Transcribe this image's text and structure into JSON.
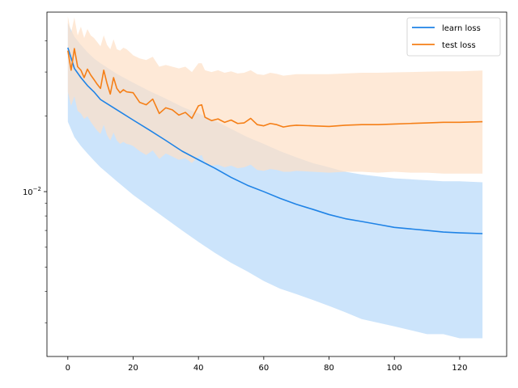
{
  "chart_data": {
    "type": "line",
    "x_scale": "linear",
    "y_scale": "log",
    "xlim": [
      -6.4,
      134.4
    ],
    "ylim": [
      0.0022,
      0.052
    ],
    "x_ticks": [
      0,
      20,
      40,
      60,
      80,
      100,
      120
    ],
    "x_tick_labels": [
      "0",
      "20",
      "40",
      "60",
      "80",
      "100",
      "120"
    ],
    "y_major_ticks": [
      0.01
    ],
    "y_major_tick_labels": [
      "10",
      "−2"
    ],
    "y_minor_ticks": [
      0.003,
      0.004,
      0.005,
      0.006,
      0.007,
      0.008,
      0.009,
      0.02,
      0.03,
      0.04
    ],
    "legend": {
      "placement": "top-right",
      "entries": [
        "learn loss",
        "test loss"
      ]
    },
    "grid": false,
    "series": [
      {
        "name": "learn loss",
        "color": "#1f83e6",
        "band_color": "#cce4fb",
        "x": [
          0,
          2,
          4,
          6,
          8,
          10,
          15,
          20,
          25,
          30,
          35,
          40,
          45,
          50,
          55,
          60,
          65,
          70,
          75,
          80,
          85,
          90,
          95,
          100,
          105,
          110,
          115,
          120,
          127
        ],
        "values": [
          0.0375,
          0.031,
          0.0285,
          0.0265,
          0.025,
          0.0233,
          0.0212,
          0.0193,
          0.0176,
          0.016,
          0.0145,
          0.0134,
          0.0124,
          0.0114,
          0.0106,
          0.01,
          0.0094,
          0.0089,
          0.0085,
          0.0081,
          0.0078,
          0.0076,
          0.0074,
          0.0072,
          0.0071,
          0.007,
          0.0069,
          0.00685,
          0.0068
        ],
        "lower": [
          0.019,
          0.0165,
          0.0152,
          0.0142,
          0.0133,
          0.0125,
          0.011,
          0.0097,
          0.0087,
          0.0078,
          0.007,
          0.0063,
          0.0057,
          0.0052,
          0.0048,
          0.0044,
          0.0041,
          0.0039,
          0.0037,
          0.0035,
          0.0033,
          0.0031,
          0.003,
          0.0029,
          0.0028,
          0.0027,
          0.0027,
          0.0026,
          0.0026
        ],
        "upper": [
          0.047,
          0.0415,
          0.0385,
          0.036,
          0.034,
          0.0325,
          0.0295,
          0.0272,
          0.0252,
          0.0235,
          0.0218,
          0.0205,
          0.0192,
          0.0178,
          0.0165,
          0.0155,
          0.0145,
          0.0137,
          0.013,
          0.0125,
          0.012,
          0.0117,
          0.0115,
          0.0113,
          0.0112,
          0.0111,
          0.011,
          0.011,
          0.0109
        ]
      },
      {
        "name": "test loss",
        "color": "#f57f17",
        "band_color": "#fde0c6",
        "x": [
          0,
          1,
          2,
          3,
          4,
          5,
          6,
          7,
          8,
          9,
          10,
          11,
          12,
          13,
          14,
          15,
          16,
          17,
          18,
          19,
          20,
          22,
          24,
          26,
          28,
          30,
          32,
          34,
          36,
          38,
          40,
          41,
          42,
          44,
          46,
          48,
          50,
          52,
          54,
          56,
          58,
          60,
          62,
          64,
          66,
          68,
          70,
          75,
          80,
          85,
          90,
          95,
          100,
          105,
          110,
          115,
          120,
          127
        ],
        "values": [
          0.0365,
          0.0305,
          0.0372,
          0.0315,
          0.0305,
          0.0285,
          0.0308,
          0.0292,
          0.028,
          0.0268,
          0.0258,
          0.0305,
          0.027,
          0.0245,
          0.0285,
          0.0258,
          0.0248,
          0.0255,
          0.025,
          0.0249,
          0.0248,
          0.0227,
          0.0222,
          0.0234,
          0.0205,
          0.0216,
          0.0212,
          0.0202,
          0.0207,
          0.0196,
          0.022,
          0.0222,
          0.0198,
          0.0192,
          0.0195,
          0.0189,
          0.0193,
          0.0187,
          0.0188,
          0.0196,
          0.0185,
          0.0183,
          0.0187,
          0.0185,
          0.0181,
          0.0183,
          0.0184,
          0.0183,
          0.0182,
          0.0184,
          0.0185,
          0.0185,
          0.0186,
          0.0187,
          0.0188,
          0.0189,
          0.0189,
          0.019
        ],
        "lower": [
          0.025,
          0.022,
          0.024,
          0.021,
          0.0205,
          0.0195,
          0.02,
          0.019,
          0.0182,
          0.0175,
          0.017,
          0.0185,
          0.0168,
          0.016,
          0.0172,
          0.016,
          0.0155,
          0.0158,
          0.0155,
          0.0154,
          0.0152,
          0.0145,
          0.014,
          0.0146,
          0.0135,
          0.0142,
          0.0138,
          0.0134,
          0.0136,
          0.013,
          0.0138,
          0.014,
          0.013,
          0.0127,
          0.0128,
          0.0125,
          0.0127,
          0.0124,
          0.0125,
          0.0128,
          0.0122,
          0.0121,
          0.0123,
          0.0122,
          0.012,
          0.012,
          0.0121,
          0.012,
          0.0119,
          0.012,
          0.012,
          0.0119,
          0.012,
          0.0119,
          0.0119,
          0.0118,
          0.0118,
          0.0118
        ],
        "upper": [
          0.05,
          0.043,
          0.0495,
          0.042,
          0.0455,
          0.041,
          0.0445,
          0.042,
          0.041,
          0.0395,
          0.038,
          0.042,
          0.0385,
          0.037,
          0.0405,
          0.037,
          0.0365,
          0.0375,
          0.037,
          0.036,
          0.035,
          0.034,
          0.0335,
          0.0345,
          0.0315,
          0.032,
          0.0315,
          0.031,
          0.0315,
          0.03,
          0.0325,
          0.0325,
          0.0305,
          0.03,
          0.0305,
          0.0298,
          0.0302,
          0.0296,
          0.0298,
          0.0305,
          0.0294,
          0.0292,
          0.0298,
          0.0295,
          0.029,
          0.0292,
          0.0294,
          0.0294,
          0.0294,
          0.0296,
          0.0298,
          0.0298,
          0.0299,
          0.03,
          0.0301,
          0.0302,
          0.0302,
          0.0304
        ]
      }
    ]
  }
}
